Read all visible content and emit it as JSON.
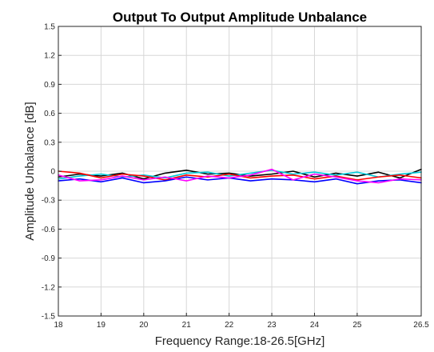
{
  "chart_data": {
    "type": "line",
    "title": "Output To Output Amplitude Unbalance",
    "xlabel": "Frequency Range:18-26.5[GHz]",
    "ylabel": "Amplitude Unbalance [dB]",
    "xlim": [
      18,
      26.5
    ],
    "ylim": [
      -1.5,
      1.5
    ],
    "xticks": [
      18,
      19,
      20,
      21,
      22,
      23,
      24,
      25,
      26.5
    ],
    "xtick_labels": [
      "18",
      "19",
      "20",
      "21",
      "22",
      "23",
      "24",
      "25",
      "26.5"
    ],
    "yticks": [
      1.5,
      1.2,
      0.9,
      0.6,
      0.3,
      0,
      -0.3,
      -0.6,
      -0.9,
      -1.2,
      -1.5
    ],
    "ytick_labels": [
      "1.5",
      "1.2",
      "0.9",
      "0.6",
      "0.3",
      "0",
      "-0.3",
      "-0.6",
      "-0.9",
      "-1.2",
      "-1.5"
    ],
    "grid": true,
    "x": [
      18.0,
      18.5,
      19.0,
      19.5,
      20.0,
      20.5,
      21.0,
      21.5,
      22.0,
      22.5,
      23.0,
      23.5,
      24.0,
      24.5,
      25.0,
      25.5,
      26.0,
      26.5
    ],
    "series": [
      {
        "color": "#000000",
        "values": [
          -0.06,
          -0.03,
          -0.05,
          -0.02,
          -0.08,
          -0.02,
          0.01,
          -0.03,
          -0.02,
          -0.05,
          -0.03,
          0.0,
          -0.06,
          -0.02,
          -0.05,
          -0.01,
          -0.07,
          0.02
        ]
      },
      {
        "color": "#00c8d8",
        "values": [
          -0.08,
          -0.05,
          -0.03,
          -0.06,
          -0.04,
          -0.07,
          -0.02,
          -0.01,
          -0.05,
          -0.02,
          0.01,
          -0.03,
          -0.01,
          -0.04,
          -0.01,
          -0.06,
          -0.03,
          -0.01
        ]
      },
      {
        "color": "#ff0000",
        "values": [
          0.0,
          -0.02,
          -0.07,
          -0.03,
          -0.05,
          -0.09,
          -0.04,
          -0.06,
          -0.03,
          -0.07,
          -0.05,
          -0.04,
          -0.08,
          -0.05,
          -0.09,
          -0.06,
          -0.04,
          -0.07
        ]
      },
      {
        "color": "#0000ff",
        "values": [
          -0.1,
          -0.08,
          -0.11,
          -0.07,
          -0.12,
          -0.1,
          -0.06,
          -0.09,
          -0.07,
          -0.1,
          -0.08,
          -0.09,
          -0.11,
          -0.08,
          -0.13,
          -0.1,
          -0.09,
          -0.12
        ]
      },
      {
        "color": "#ff00ff",
        "values": [
          -0.04,
          -0.1,
          -0.09,
          -0.05,
          -0.09,
          -0.06,
          -0.1,
          -0.05,
          -0.07,
          -0.04,
          0.02,
          -0.09,
          -0.03,
          -0.06,
          -0.1,
          -0.12,
          -0.08,
          -0.09
        ]
      }
    ]
  }
}
